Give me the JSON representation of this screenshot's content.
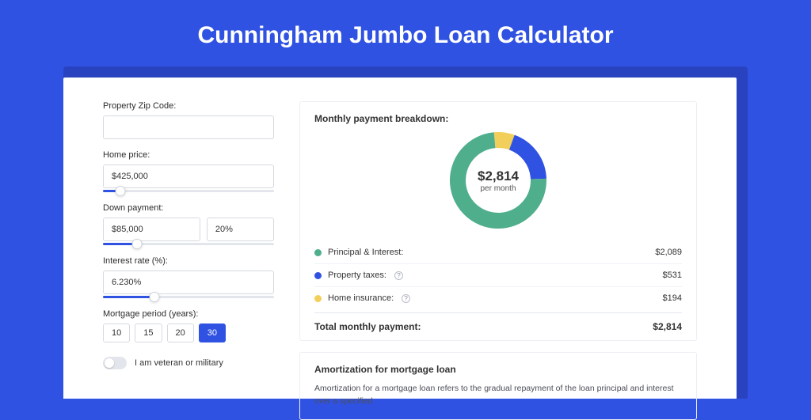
{
  "colors": {
    "accent": "#3052e3",
    "page_bg": "#3052e3",
    "card_shadow": "#2943c0",
    "border": "#d6d9e0"
  },
  "header": {
    "title": "Cunningham Jumbo Loan Calculator"
  },
  "form": {
    "zip": {
      "label": "Property Zip Code:",
      "value": ""
    },
    "home_price": {
      "label": "Home price:",
      "value": "$425,000",
      "slider_pct": 10
    },
    "down_payment": {
      "label": "Down payment:",
      "amount": "$85,000",
      "pct": "20%",
      "slider_pct": 20
    },
    "interest": {
      "label": "Interest rate (%):",
      "value": "6.230%",
      "slider_pct": 30
    },
    "period": {
      "label": "Mortgage period (years):",
      "options": [
        "10",
        "15",
        "20",
        "30"
      ],
      "selected_index": 3
    },
    "veteran": {
      "label": "I am veteran or military",
      "checked": false
    }
  },
  "breakdown": {
    "title": "Monthly payment breakdown:",
    "center_amount": "$2,814",
    "center_sub": "per month",
    "donut": {
      "size": 122,
      "thickness": 20,
      "bg": "#ffffff",
      "slices": [
        {
          "label": "Principal & Interest:",
          "value": "$2,089",
          "color": "#4fae8c",
          "pct": 74.2
        },
        {
          "label": "Property taxes:",
          "value": "$531",
          "color": "#3052e3",
          "pct": 18.9,
          "info": true
        },
        {
          "label": "Home insurance:",
          "value": "$194",
          "color": "#f2cf5b",
          "pct": 6.9,
          "info": true
        }
      ]
    },
    "total_label": "Total monthly payment:",
    "total_value": "$2,814"
  },
  "amortization": {
    "title": "Amortization for mortgage loan",
    "body": "Amortization for a mortgage loan refers to the gradual repayment of the loan principal and interest over a specified"
  }
}
